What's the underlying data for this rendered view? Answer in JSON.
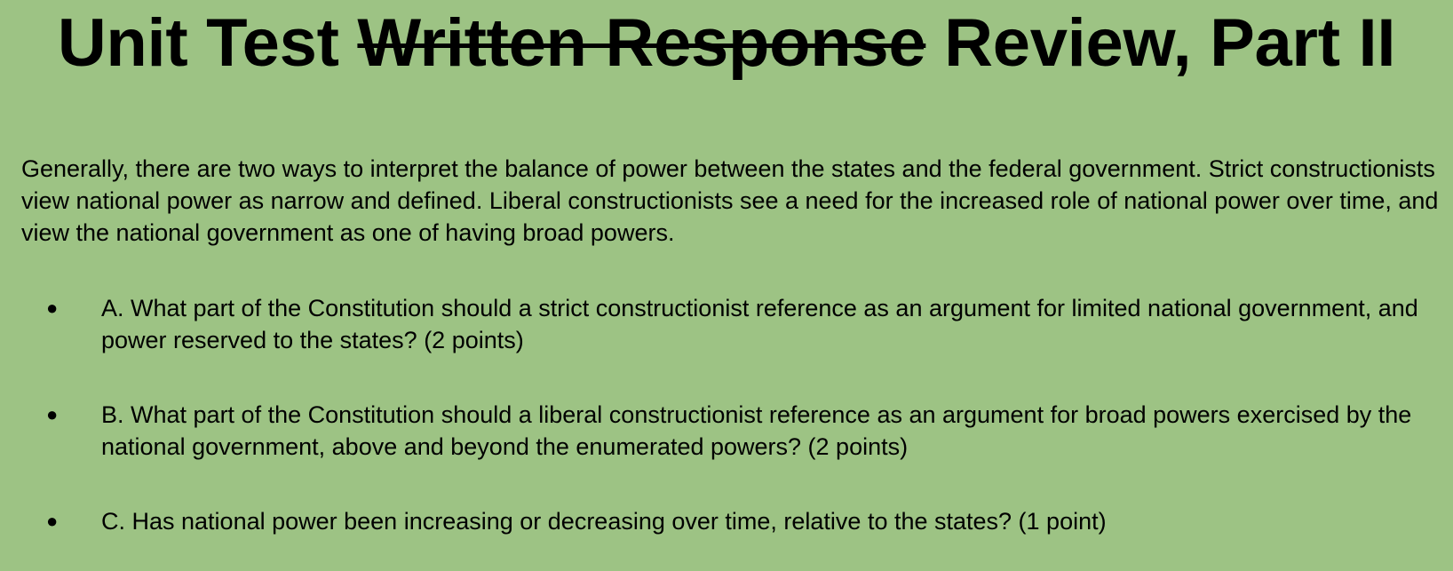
{
  "title": {
    "before": "Unit Test ",
    "struck": "Written Response",
    "after": " Review, Part II"
  },
  "intro": "Generally, there are two ways to interpret the balance of power between the states and the federal government.  Strict constructionists view national power as narrow and defined.  Liberal constructionists see a need for the increased role of national power over time, and view the national government as one of having broad powers.",
  "questions": [
    {
      "bullet": "●",
      "text": "A. What part of the Constitution should a strict constructionist reference as an argument for limited national government, and power reserved to the states? (2 points)"
    },
    {
      "bullet": "●",
      "text": "B. What part of the Constitution should a liberal constructionist reference as an argument for broad powers exercised by the national government, above and beyond the enumerated powers? (2 points)"
    },
    {
      "bullet": "●",
      "text": "C. Has national power been increasing or decreasing over time, relative to the states? (1 point)"
    }
  ],
  "colors": {
    "background": "#9dc384",
    "text": "#000000"
  }
}
